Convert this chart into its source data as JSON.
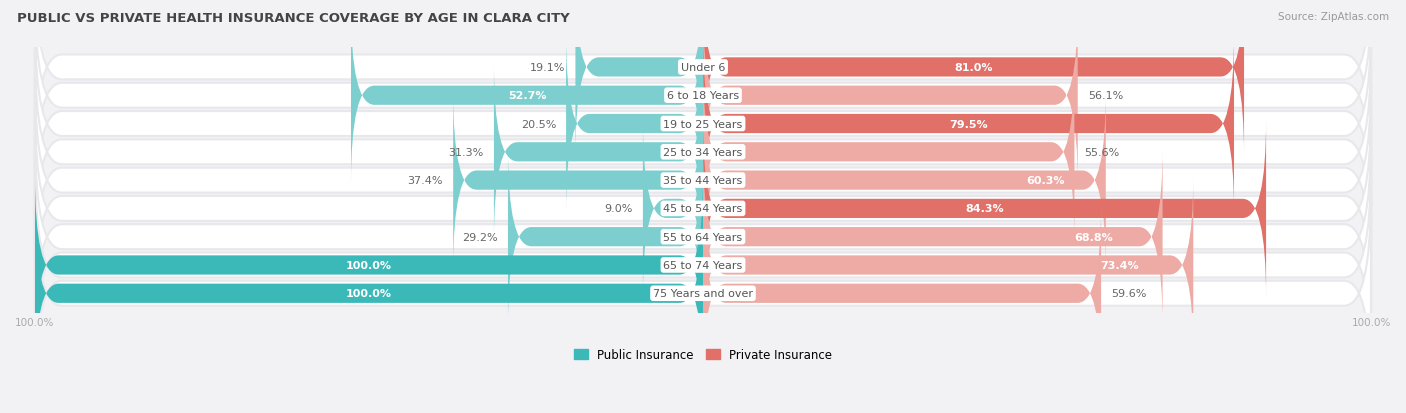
{
  "title": "PUBLIC VS PRIVATE HEALTH INSURANCE COVERAGE BY AGE IN CLARA CITY",
  "source": "Source: ZipAtlas.com",
  "categories": [
    "Under 6",
    "6 to 18 Years",
    "19 to 25 Years",
    "25 to 34 Years",
    "35 to 44 Years",
    "45 to 54 Years",
    "55 to 64 Years",
    "65 to 74 Years",
    "75 Years and over"
  ],
  "public_values": [
    19.1,
    52.7,
    20.5,
    31.3,
    37.4,
    9.0,
    29.2,
    100.0,
    100.0
  ],
  "private_values": [
    81.0,
    56.1,
    79.5,
    55.6,
    60.3,
    84.3,
    68.8,
    73.4,
    59.6
  ],
  "public_color_strong": "#3bb8b8",
  "public_color_light": "#7dcfcf",
  "private_color_strong": "#e07068",
  "private_color_light": "#eeaaa4",
  "row_bg_color": "#e8e8ec",
  "fig_bg_color": "#f2f2f5",
  "title_color": "#444444",
  "source_color": "#999999",
  "label_dark": "#666666",
  "label_white": "#ffffff",
  "center_label_color": "#555555",
  "axis_tick_color": "#aaaaaa",
  "max_val": 100.0,
  "legend_public": "Public Insurance",
  "legend_private": "Private Insurance",
  "public_strong_threshold": 60.0,
  "private_strong_threshold": 75.0
}
